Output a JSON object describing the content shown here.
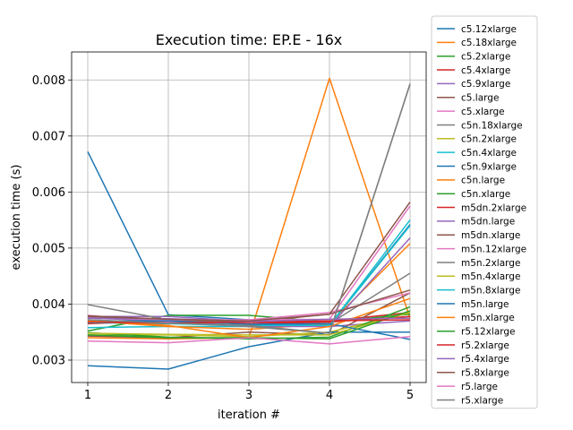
{
  "chart_data": {
    "type": "line",
    "title": "Execution time: EP.E - 16x",
    "xlabel": "iteration #",
    "ylabel": "execution time (s)",
    "x": [
      1,
      2,
      3,
      4,
      5
    ],
    "xlim": [
      0.8,
      5.2
    ],
    "ylim": [
      0.0026,
      0.0085
    ],
    "xticks": [
      "1",
      "2",
      "3",
      "4",
      "5"
    ],
    "yticks": [
      "0.003",
      "0.004",
      "0.005",
      "0.006",
      "0.007",
      "0.008"
    ],
    "ytick_values": [
      0.003,
      0.004,
      0.005,
      0.006,
      0.007,
      0.008
    ],
    "grid": true,
    "legend_position": "outside-right",
    "series": [
      {
        "name": "c5.12xlarge",
        "color": "#1f77b4",
        "values": [
          0.00672,
          0.00381,
          0.00372,
          0.00362,
          0.00542
        ]
      },
      {
        "name": "c5.18xlarge",
        "color": "#ff7f0e",
        "values": [
          0.0034,
          0.00338,
          0.0034,
          0.00803,
          0.00375
        ]
      },
      {
        "name": "c5.2xlarge",
        "color": "#2ca02c",
        "values": [
          0.00352,
          0.0038,
          0.0038,
          0.00368,
          0.00382
        ]
      },
      {
        "name": "c5.4xlarge",
        "color": "#d62728",
        "values": [
          0.00365,
          0.0037,
          0.00365,
          0.0037,
          0.00385
        ]
      },
      {
        "name": "c5.9xlarge",
        "color": "#9467bd",
        "values": [
          0.00378,
          0.00378,
          0.00369,
          0.0036,
          0.0037
        ]
      },
      {
        "name": "c5.large",
        "color": "#8c564b",
        "values": [
          0.00343,
          0.0034,
          0.0035,
          0.00345,
          0.0042
        ]
      },
      {
        "name": "c5.xlarge",
        "color": "#e377c2",
        "values": [
          0.0038,
          0.00368,
          0.00372,
          0.00385,
          0.0042
        ]
      },
      {
        "name": "c5n.18xlarge",
        "color": "#7f7f7f",
        "values": [
          0.00399,
          0.00372,
          0.00365,
          0.00365,
          0.00455
        ]
      },
      {
        "name": "c5n.2xlarge",
        "color": "#bcbd22",
        "values": [
          0.00345,
          0.00345,
          0.00342,
          0.0035,
          0.00385
        ]
      },
      {
        "name": "c5n.4xlarge",
        "color": "#17becf",
        "values": [
          0.00358,
          0.0036,
          0.0036,
          0.00362,
          0.0055
        ]
      },
      {
        "name": "c5n.9xlarge",
        "color": "#1f77b4",
        "values": [
          0.0029,
          0.00284,
          0.00324,
          0.0035,
          0.0035
        ]
      },
      {
        "name": "c5n.large",
        "color": "#ff7f0e",
        "values": [
          0.0037,
          0.0036,
          0.00355,
          0.00365,
          0.00508
        ]
      },
      {
        "name": "c5n.xlarge",
        "color": "#2ca02c",
        "values": [
          0.00349,
          0.00341,
          0.00338,
          0.00341,
          0.00395
        ]
      },
      {
        "name": "m5dn.2xlarge",
        "color": "#d62728",
        "values": [
          0.00366,
          0.0037,
          0.00365,
          0.00368,
          0.00378
        ]
      },
      {
        "name": "m5dn.large",
        "color": "#9467bd",
        "values": [
          0.00375,
          0.0037,
          0.0036,
          0.0036,
          0.00518
        ]
      },
      {
        "name": "m5dn.xlarge",
        "color": "#8c564b",
        "values": [
          0.00379,
          0.00373,
          0.00368,
          0.00382,
          0.00582
        ]
      },
      {
        "name": "m5n.12xlarge",
        "color": "#e377c2",
        "values": [
          0.00376,
          0.00372,
          0.00372,
          0.00373,
          0.00575
        ]
      },
      {
        "name": "m5n.2xlarge",
        "color": "#7f7f7f",
        "values": [
          0.00372,
          0.00366,
          0.0036,
          0.00348,
          0.00793
        ]
      },
      {
        "name": "m5n.4xlarge",
        "color": "#bcbd22",
        "values": [
          0.00348,
          0.00346,
          0.00345,
          0.00345,
          0.00385
        ]
      },
      {
        "name": "m5n.8xlarge",
        "color": "#17becf",
        "values": [
          0.00367,
          0.00365,
          0.00362,
          0.00362,
          0.0054
        ]
      },
      {
        "name": "m5n.large",
        "color": "#1f77b4",
        "values": [
          0.0037,
          0.0037,
          0.00364,
          0.00365,
          0.00337
        ]
      },
      {
        "name": "m5n.xlarge",
        "color": "#ff7f0e",
        "values": [
          0.0037,
          0.00362,
          0.0034,
          0.0036,
          0.0041
        ]
      },
      {
        "name": "r5.12xlarge",
        "color": "#2ca02c",
        "values": [
          0.00345,
          0.0034,
          0.0034,
          0.00338,
          0.00388
        ]
      },
      {
        "name": "r5.2xlarge",
        "color": "#d62728",
        "values": [
          0.00368,
          0.00366,
          0.00368,
          0.0037,
          0.00372
        ]
      },
      {
        "name": "r5.4xlarge",
        "color": "#9467bd",
        "values": [
          0.00375,
          0.00374,
          0.00369,
          0.00373,
          0.00375
        ]
      },
      {
        "name": "r5.8xlarge",
        "color": "#8c564b",
        "values": [
          0.00378,
          0.00373,
          0.0037,
          0.00382,
          0.00425
        ]
      },
      {
        "name": "r5.large",
        "color": "#e377c2",
        "values": [
          0.00334,
          0.00331,
          0.0034,
          0.00329,
          0.00342
        ]
      },
      {
        "name": "r5.xlarge",
        "color": "#7f7f7f",
        "values": [
          0.00372,
          0.00366,
          0.00362,
          0.00348,
          0.00793
        ]
      }
    ]
  }
}
